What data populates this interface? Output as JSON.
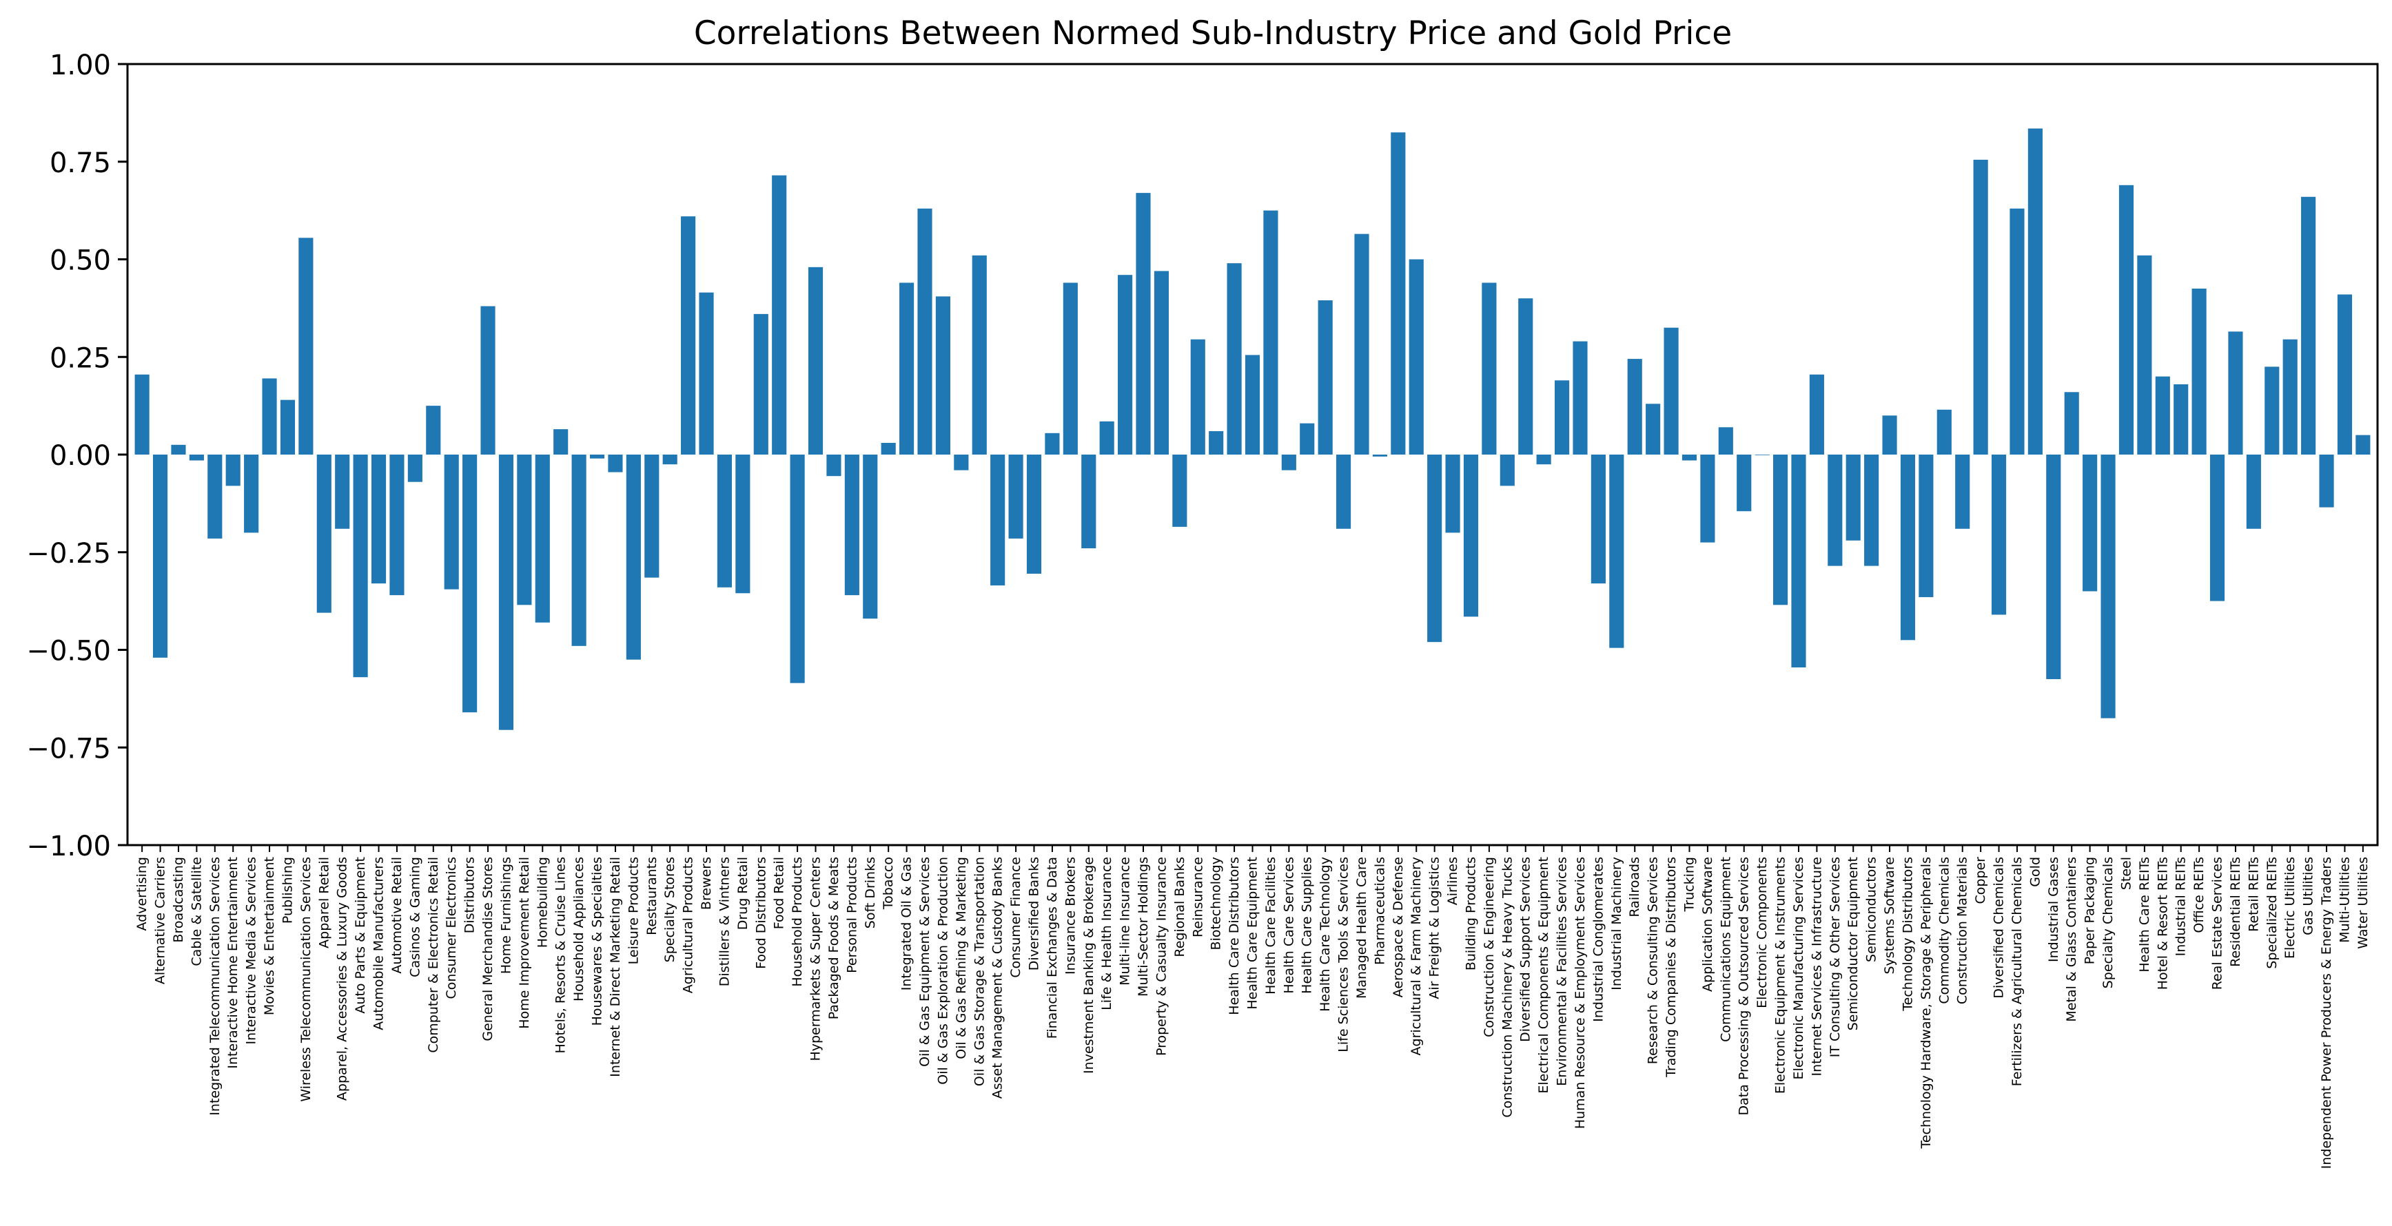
{
  "chart_data": {
    "type": "bar",
    "title": "Correlations Between Normed Sub-Industry Price and Gold Price",
    "xlabel": "",
    "ylabel": "",
    "ylim": [
      -1.0,
      1.0
    ],
    "yticks": [
      "−1.00",
      "−0.75",
      "−0.50",
      "−0.25",
      "0.00",
      "0.25",
      "0.50",
      "0.75",
      "1.00"
    ],
    "grid": false,
    "bar_color": "#1f77b4",
    "categories": [
      "Advertising",
      "Alternative Carriers",
      "Broadcasting",
      "Cable & Satellite",
      "Integrated Telecommunication Services",
      "Interactive Home Entertainment",
      "Interactive Media & Services",
      "Movies & Entertainment",
      "Publishing",
      "Wireless Telecommunication Services",
      "Apparel Retail",
      "Apparel, Accessories & Luxury Goods",
      "Auto Parts & Equipment",
      "Automobile Manufacturers",
      "Automotive Retail",
      "Casinos & Gaming",
      "Computer & Electronics Retail",
      "Consumer Electronics",
      "Distributors",
      "General Merchandise Stores",
      "Home Furnishings",
      "Home Improvement Retail",
      "Homebuilding",
      "Hotels, Resorts & Cruise Lines",
      "Household Appliances",
      "Housewares & Specialties",
      "Internet & Direct Marketing Retail",
      "Leisure Products",
      "Restaurants",
      "Specialty Stores",
      "Agricultural Products",
      "Brewers",
      "Distillers & Vintners",
      "Drug Retail",
      "Food Distributors",
      "Food Retail",
      "Household Products",
      "Hypermarkets & Super Centers",
      "Packaged Foods & Meats",
      "Personal Products",
      "Soft Drinks",
      "Tobacco",
      "Integrated Oil & Gas",
      "Oil & Gas Equipment & Services",
      "Oil & Gas Exploration & Production",
      "Oil & Gas Refining & Marketing",
      "Oil & Gas Storage & Transportation",
      "Asset Management & Custody Banks",
      "Consumer Finance",
      "Diversified Banks",
      "Financial Exchanges & Data",
      "Insurance Brokers",
      "Investment Banking & Brokerage",
      "Life & Health Insurance",
      "Multi-line Insurance",
      "Multi-Sector Holdings",
      "Property & Casualty Insurance",
      "Regional Banks",
      "Reinsurance",
      "Biotechnology",
      "Health Care Distributors",
      "Health Care Equipment",
      "Health Care Facilities",
      "Health Care Services",
      "Health Care Supplies",
      "Health Care Technology",
      "Life Sciences Tools & Services",
      "Managed Health Care",
      "Pharmaceuticals",
      "Aerospace & Defense",
      "Agricultural & Farm Machinery",
      "Air Freight & Logistics",
      "Airlines",
      "Building Products",
      "Construction & Engineering",
      "Construction Machinery & Heavy Trucks",
      "Diversified Support Services",
      "Electrical Components & Equipment",
      "Environmental & Facilities Services",
      "Human Resource & Employment Services",
      "Industrial Conglomerates",
      "Industrial Machinery",
      "Railroads",
      "Research & Consulting Services",
      "Trading Companies & Distributors",
      "Trucking",
      "Application Software",
      "Communications Equipment",
      "Data Processing & Outsourced Services",
      "Electronic Components",
      "Electronic Equipment & Instruments",
      "Electronic Manufacturing Services",
      "Internet Services & Infrastructure",
      "IT Consulting & Other Services",
      "Semiconductor Equipment",
      "Semiconductors",
      "Systems Software",
      "Technology Distributors",
      "Technology Hardware, Storage & Peripherals",
      "Commodity Chemicals",
      "Construction Materials",
      "Copper",
      "Diversified Chemicals",
      "Fertilizers & Agricultural Chemicals",
      "Gold",
      "Industrial Gases",
      "Metal & Glass Containers",
      "Paper Packaging",
      "Specialty Chemicals",
      "Steel",
      "Health Care REITs",
      "Hotel & Resort REITs",
      "Industrial REITs",
      "Office REITs",
      "Real Estate Services",
      "Residential REITs",
      "Retail REITs",
      "Specialized REITs",
      "Electric Utilities",
      "Gas Utilities",
      "Independent Power Producers & Energy Traders",
      "Multi-Utilities",
      "Water Utilities"
    ],
    "values": [
      0.205,
      -0.52,
      0.025,
      -0.015,
      -0.215,
      -0.08,
      -0.2,
      0.195,
      0.14,
      0.555,
      -0.405,
      -0.19,
      -0.57,
      -0.33,
      -0.36,
      -0.07,
      0.125,
      -0.345,
      -0.66,
      0.38,
      -0.705,
      -0.385,
      -0.43,
      0.065,
      -0.49,
      -0.01,
      -0.045,
      -0.525,
      -0.315,
      -0.025,
      0.61,
      0.415,
      -0.34,
      -0.355,
      0.36,
      0.715,
      -0.585,
      0.48,
      -0.055,
      -0.36,
      -0.42,
      0.03,
      0.44,
      0.63,
      0.405,
      -0.04,
      0.51,
      -0.335,
      -0.215,
      -0.305,
      0.055,
      0.44,
      -0.24,
      0.085,
      0.46,
      0.67,
      0.47,
      -0.185,
      0.295,
      0.06,
      0.49,
      0.255,
      0.625,
      -0.04,
      0.08,
      0.395,
      -0.19,
      0.565,
      -0.005,
      0.825,
      0.5,
      -0.48,
      -0.2,
      -0.415,
      0.44,
      -0.08,
      0.4,
      -0.025,
      0.19,
      0.29,
      -0.33,
      -0.495,
      0.245,
      0.13,
      0.325,
      -0.015,
      -0.225,
      0.07,
      -0.145,
      0.0,
      -0.385,
      -0.545,
      0.205,
      -0.285,
      -0.22,
      -0.285,
      0.1,
      -0.475,
      -0.365,
      0.115,
      -0.19,
      0.755,
      -0.41,
      0.63,
      0.835,
      -0.575,
      0.16,
      -0.35,
      -0.675,
      0.69,
      0.51,
      0.2,
      0.18,
      0.425,
      -0.375,
      0.315,
      -0.19,
      0.225,
      0.295,
      0.66,
      -0.135,
      0.41,
      0.05
    ]
  }
}
